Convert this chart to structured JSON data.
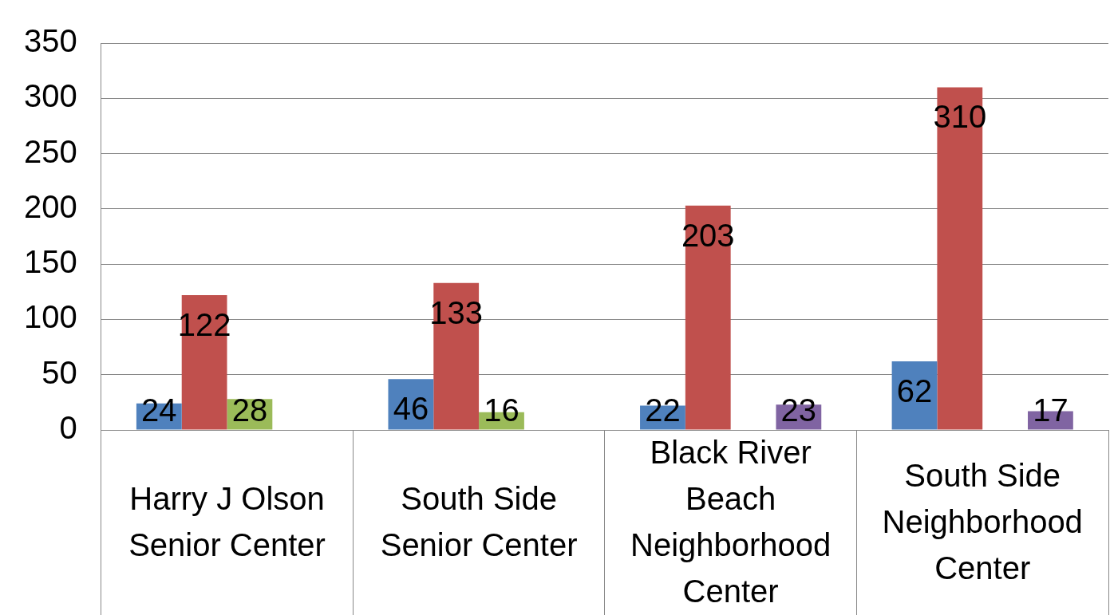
{
  "chart_data": {
    "type": "bar",
    "categories": [
      "Harry J Olson Senior Center",
      "South Side Senior Center",
      "Black River Beach Neighborhood Center",
      "South Side Neighborhood Center"
    ],
    "series": [
      {
        "color": "#4f81bd",
        "values": [
          24,
          46,
          22,
          62
        ]
      },
      {
        "color": "#c0504d",
        "values": [
          122,
          133,
          203,
          310
        ]
      },
      {
        "color": "#9bbb59",
        "values": [
          28,
          16,
          null,
          null
        ]
      },
      {
        "color": "#8064a2",
        "values": [
          null,
          null,
          23,
          17
        ]
      }
    ],
    "ylim": [
      0,
      350
    ],
    "yticks": [
      0,
      50,
      100,
      150,
      200,
      250,
      300,
      350
    ],
    "grid": "y",
    "legend": false,
    "data_labels": true
  }
}
